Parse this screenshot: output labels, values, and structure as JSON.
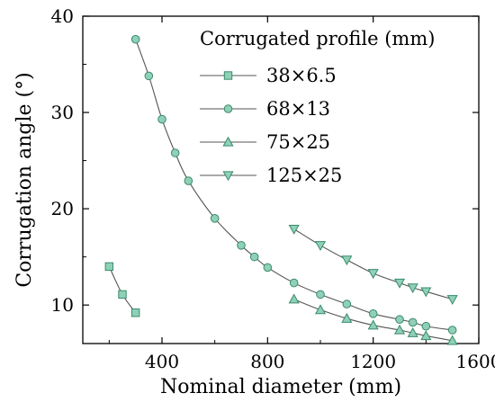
{
  "chart_data": {
    "type": "line",
    "xlabel": "Nominal diameter (mm)",
    "ylabel": "Corrugation angle (°)",
    "xlim": [
      100,
      1600
    ],
    "ylim": [
      6,
      40
    ],
    "xticks": [
      400,
      800,
      1200,
      1600
    ],
    "xtick_labels": [
      "400",
      "800",
      "1200",
      "1600"
    ],
    "yticks": [
      10,
      20,
      30,
      40
    ],
    "ytick_labels": [
      "10",
      "20",
      "30",
      "40"
    ],
    "grid": false,
    "legend_title": "Corrugated profile (mm)",
    "legend_position": "top-right",
    "marker_color": "#8fd1b8",
    "marker_stroke": "#3a8a6a",
    "line_color": "#555555",
    "series": [
      {
        "name": "38×6.5",
        "marker": "square",
        "x": [
          200,
          250,
          300
        ],
        "y": [
          14.0,
          11.1,
          9.2
        ]
      },
      {
        "name": "68×13",
        "marker": "circle",
        "x": [
          300,
          350,
          400,
          450,
          500,
          600,
          700,
          750,
          800,
          900,
          1000,
          1100,
          1200,
          1300,
          1350,
          1400,
          1500
        ],
        "y": [
          37.6,
          33.8,
          29.3,
          25.8,
          22.9,
          19.0,
          16.2,
          15.0,
          13.9,
          12.3,
          11.1,
          10.1,
          9.1,
          8.5,
          8.2,
          7.8,
          7.4
        ]
      },
      {
        "name": "75×25",
        "marker": "triangle-up",
        "x": [
          900,
          1000,
          1100,
          1200,
          1300,
          1350,
          1400,
          1500
        ],
        "y": [
          10.6,
          9.5,
          8.6,
          7.9,
          7.4,
          7.1,
          6.8,
          6.3
        ]
      },
      {
        "name": "125×25",
        "marker": "triangle-down",
        "x": [
          900,
          1000,
          1100,
          1200,
          1300,
          1350,
          1400,
          1500
        ],
        "y": [
          17.9,
          16.2,
          14.7,
          13.3,
          12.3,
          11.8,
          11.4,
          10.6
        ]
      }
    ]
  }
}
